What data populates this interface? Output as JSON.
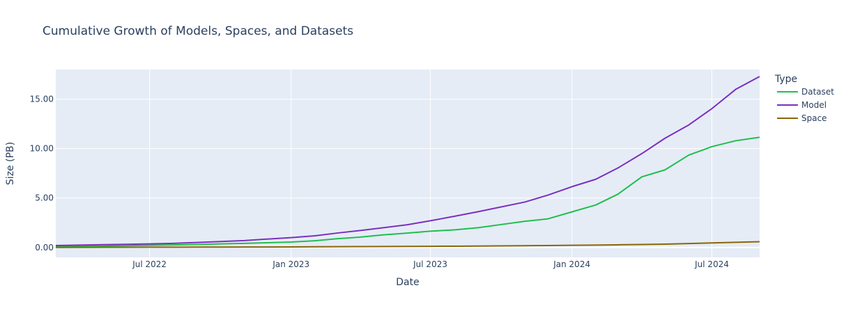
{
  "chart_data": {
    "type": "line",
    "title": "Cumulative Growth of Models, Spaces, and Datasets",
    "xlabel": "Date",
    "ylabel": "Size (PB)",
    "xlim": [
      "2022-03-01",
      "2024-09-01"
    ],
    "ylim": [
      -1,
      18
    ],
    "x_ticks": [
      {
        "date": "2022-07-01",
        "label": "Jul 2022"
      },
      {
        "date": "2023-01-01",
        "label": "Jan 2023"
      },
      {
        "date": "2023-07-01",
        "label": "Jul 2023"
      },
      {
        "date": "2024-01-01",
        "label": "Jan 2024"
      },
      {
        "date": "2024-07-01",
        "label": "Jul 2024"
      }
    ],
    "y_ticks": [
      {
        "value": 0,
        "label": "0.00"
      },
      {
        "value": 5,
        "label": "5.00"
      },
      {
        "value": 10,
        "label": "10.00"
      },
      {
        "value": 15,
        "label": "15.00"
      }
    ],
    "grid": true,
    "legend": {
      "title": "Type",
      "placement": "right"
    },
    "x": [
      "2022-03-01",
      "2022-04-01",
      "2022-05-01",
      "2022-06-01",
      "2022-07-01",
      "2022-08-01",
      "2022-09-01",
      "2022-10-01",
      "2022-11-01",
      "2022-12-01",
      "2023-01-01",
      "2023-02-01",
      "2023-03-01",
      "2023-04-01",
      "2023-05-01",
      "2023-06-01",
      "2023-07-01",
      "2023-08-01",
      "2023-09-01",
      "2023-10-01",
      "2023-11-01",
      "2023-12-01",
      "2024-01-01",
      "2024-02-01",
      "2024-03-01",
      "2024-04-01",
      "2024-05-01",
      "2024-06-01",
      "2024-07-01",
      "2024-08-01",
      "2024-09-01"
    ],
    "series": [
      {
        "name": "Dataset",
        "color": "#1fbe4e",
        "values": [
          0.1,
          0.12,
          0.15,
          0.18,
          0.22,
          0.26,
          0.3,
          0.36,
          0.42,
          0.48,
          0.55,
          0.68,
          0.88,
          1.05,
          1.28,
          1.45,
          1.65,
          1.78,
          2.0,
          2.32,
          2.65,
          2.9,
          3.6,
          4.3,
          5.4,
          7.15,
          7.85,
          9.35,
          10.2,
          10.8,
          11.15
        ]
      },
      {
        "name": "Model",
        "color": "#7b2fbe",
        "values": [
          0.2,
          0.24,
          0.28,
          0.32,
          0.36,
          0.42,
          0.5,
          0.6,
          0.7,
          0.85,
          1.0,
          1.18,
          1.45,
          1.72,
          2.0,
          2.3,
          2.7,
          3.15,
          3.62,
          4.1,
          4.6,
          5.3,
          6.15,
          6.9,
          8.05,
          9.5,
          11.05,
          12.4,
          14.05,
          16.0,
          17.3
        ]
      },
      {
        "name": "Space",
        "color": "#8b6508",
        "values": [
          0.0,
          0.01,
          0.02,
          0.02,
          0.03,
          0.03,
          0.04,
          0.04,
          0.05,
          0.05,
          0.06,
          0.07,
          0.08,
          0.09,
          0.1,
          0.11,
          0.12,
          0.13,
          0.14,
          0.16,
          0.18,
          0.2,
          0.22,
          0.24,
          0.27,
          0.3,
          0.34,
          0.4,
          0.46,
          0.52,
          0.58
        ]
      }
    ]
  }
}
